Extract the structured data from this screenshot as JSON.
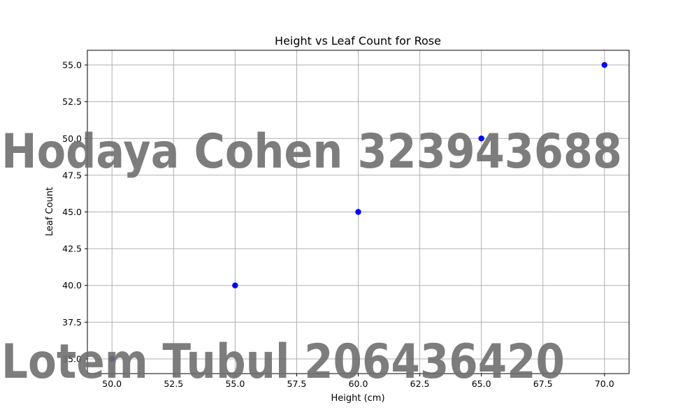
{
  "chart_data": {
    "type": "scatter",
    "title": "Height vs Leaf Count for Rose",
    "xlabel": "Height (cm)",
    "ylabel": "Leaf Count",
    "x": [
      50,
      55,
      60,
      65,
      70
    ],
    "y": [
      35,
      40,
      45,
      50,
      55
    ],
    "xlim": [
      49,
      71
    ],
    "ylim": [
      34,
      56
    ],
    "x_ticks": [
      "50.0",
      "52.5",
      "55.0",
      "57.5",
      "60.0",
      "62.5",
      "65.0",
      "67.5",
      "70.0"
    ],
    "y_ticks": [
      "35.0",
      "37.5",
      "40.0",
      "42.5",
      "45.0",
      "47.5",
      "50.0",
      "52.5",
      "55.0"
    ],
    "grid": true,
    "point_color": "#0000ff"
  },
  "watermarks": [
    "Hodaya Cohen 323943688",
    "Lotem Tubul 206436420"
  ],
  "colors": {
    "grid": "#b0b0b0",
    "axes": "#000000",
    "watermark": "#6f6f6f"
  }
}
